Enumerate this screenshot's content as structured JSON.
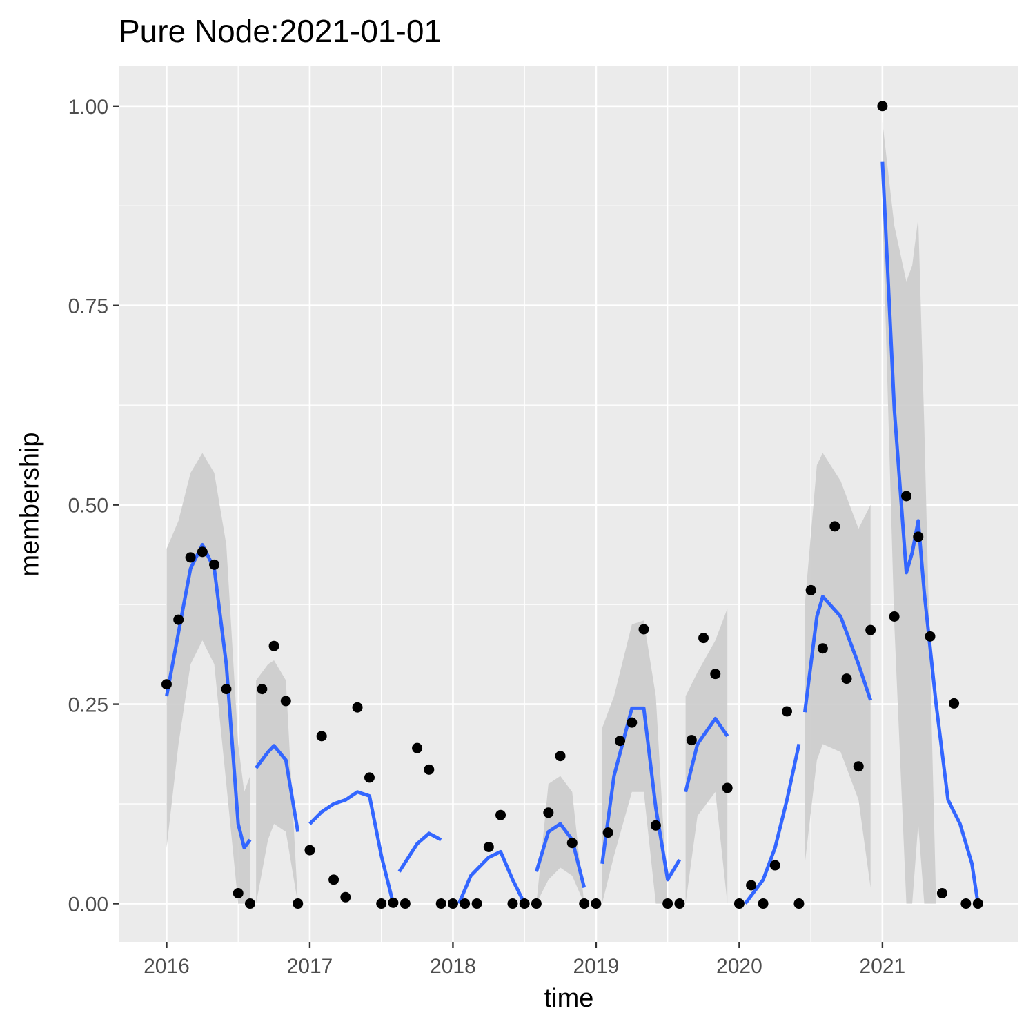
{
  "chart_data": {
    "type": "scatter",
    "title": "Pure Node:2021-01-01",
    "xlabel": "time",
    "ylabel": "membership",
    "x_ticks": [
      "2016",
      "2017",
      "2018",
      "2019",
      "2020",
      "2021"
    ],
    "y_ticks": [
      "0.00",
      "0.25",
      "0.50",
      "0.75",
      "1.00"
    ],
    "xlim": [
      2015.67,
      2021.95
    ],
    "ylim": [
      -0.048,
      1.05
    ],
    "grid": true,
    "colors": {
      "panel": "#ebebeb",
      "grid": "#ffffff",
      "points": "#000000",
      "smooth_line": "#3366ff",
      "confidence_band": "#cccccc"
    },
    "points": [
      [
        2016.0,
        0.275
      ],
      [
        2016.083,
        0.356
      ],
      [
        2016.167,
        0.434
      ],
      [
        2016.25,
        0.441
      ],
      [
        2016.333,
        0.425
      ],
      [
        2016.417,
        0.269
      ],
      [
        2016.5,
        0.013
      ],
      [
        2016.583,
        0.0
      ],
      [
        2016.667,
        0.269
      ],
      [
        2016.75,
        0.323
      ],
      [
        2016.833,
        0.254
      ],
      [
        2016.917,
        0.0
      ],
      [
        2017.0,
        0.067
      ],
      [
        2017.083,
        0.21
      ],
      [
        2017.167,
        0.03
      ],
      [
        2017.25,
        0.008
      ],
      [
        2017.333,
        0.246
      ],
      [
        2017.417,
        0.158
      ],
      [
        2017.5,
        0.0
      ],
      [
        2017.583,
        0.001
      ],
      [
        2017.667,
        0.0
      ],
      [
        2017.75,
        0.195
      ],
      [
        2017.833,
        0.168
      ],
      [
        2017.917,
        0.0
      ],
      [
        2018.0,
        0.0
      ],
      [
        2018.083,
        0.0
      ],
      [
        2018.167,
        0.0
      ],
      [
        2018.25,
        0.071
      ],
      [
        2018.333,
        0.111
      ],
      [
        2018.417,
        0.0
      ],
      [
        2018.5,
        0.0
      ],
      [
        2018.583,
        0.0
      ],
      [
        2018.667,
        0.114
      ],
      [
        2018.75,
        0.185
      ],
      [
        2018.833,
        0.076
      ],
      [
        2018.917,
        0.0
      ],
      [
        2019.0,
        0.0
      ],
      [
        2019.083,
        0.089
      ],
      [
        2019.167,
        0.204
      ],
      [
        2019.25,
        0.227
      ],
      [
        2019.333,
        0.344
      ],
      [
        2019.417,
        0.098
      ],
      [
        2019.5,
        0.0
      ],
      [
        2019.583,
        0.0
      ],
      [
        2019.667,
        0.205
      ],
      [
        2019.75,
        0.333
      ],
      [
        2019.833,
        0.288
      ],
      [
        2019.917,
        0.145
      ],
      [
        2020.0,
        0.0
      ],
      [
        2020.083,
        0.023
      ],
      [
        2020.167,
        0.0
      ],
      [
        2020.25,
        0.048
      ],
      [
        2020.333,
        0.241
      ],
      [
        2020.417,
        0.0
      ],
      [
        2020.5,
        0.393
      ],
      [
        2020.583,
        0.32
      ],
      [
        2020.667,
        0.473
      ],
      [
        2020.75,
        0.282
      ],
      [
        2020.833,
        0.172
      ],
      [
        2020.917,
        0.343
      ],
      [
        2021.0,
        1.0
      ],
      [
        2021.083,
        0.36
      ],
      [
        2021.167,
        0.511
      ],
      [
        2021.25,
        0.46
      ],
      [
        2021.333,
        0.335
      ],
      [
        2021.417,
        0.013
      ],
      [
        2021.5,
        0.251
      ],
      [
        2021.583,
        0.0
      ],
      [
        2021.667,
        0.0
      ]
    ],
    "smooth_segments": [
      [
        [
          2016.0,
          0.26,
          0.07,
          0.445
        ],
        [
          2016.083,
          0.34,
          0.2,
          0.48
        ],
        [
          2016.167,
          0.42,
          0.3,
          0.54
        ],
        [
          2016.25,
          0.45,
          0.33,
          0.565
        ],
        [
          2016.333,
          0.42,
          0.3,
          0.54
        ],
        [
          2016.417,
          0.3,
          0.15,
          0.45
        ],
        [
          2016.5,
          0.1,
          0.0,
          0.2
        ],
        [
          2016.542,
          0.07,
          0.0,
          0.14
        ],
        [
          2016.583,
          0.08,
          0.0,
          0.16
        ]
      ],
      [
        [
          2016.625,
          0.17,
          0.0,
          0.28
        ],
        [
          2016.708,
          0.19,
          0.08,
          0.3
        ],
        [
          2016.75,
          0.198,
          0.1,
          0.305
        ],
        [
          2016.833,
          0.18,
          0.09,
          0.28
        ],
        [
          2016.917,
          0.09,
          0.0,
          0.0
        ]
      ],
      [
        [
          2017.0,
          0.1
        ],
        [
          2017.083,
          0.115
        ],
        [
          2017.167,
          0.125
        ],
        [
          2017.25,
          0.13
        ],
        [
          2017.333,
          0.14
        ],
        [
          2017.417,
          0.135
        ],
        [
          2017.5,
          0.06
        ],
        [
          2017.583,
          0.0
        ]
      ],
      [
        [
          2017.625,
          0.04
        ],
        [
          2017.75,
          0.075
        ],
        [
          2017.833,
          0.088
        ],
        [
          2017.917,
          0.08
        ]
      ],
      [
        [
          2018.042,
          0.0
        ],
        [
          2018.125,
          0.035
        ],
        [
          2018.25,
          0.058
        ],
        [
          2018.333,
          0.065
        ],
        [
          2018.417,
          0.03
        ],
        [
          2018.5,
          0.0
        ]
      ],
      [
        [
          2018.583,
          0.04,
          0.0,
          0.0
        ],
        [
          2018.667,
          0.09,
          0.03,
          0.15
        ],
        [
          2018.75,
          0.1,
          0.045,
          0.16
        ],
        [
          2018.833,
          0.08,
          0.035,
          0.14
        ],
        [
          2018.917,
          0.02,
          0.0,
          0.0
        ]
      ],
      [
        [
          2019.042,
          0.05,
          0.0,
          0.22
        ],
        [
          2019.125,
          0.16,
          0.06,
          0.26
        ],
        [
          2019.25,
          0.245,
          0.14,
          0.35
        ],
        [
          2019.333,
          0.245,
          0.14,
          0.355
        ],
        [
          2019.417,
          0.12,
          0.0,
          0.26
        ],
        [
          2019.5,
          0.03,
          0.0,
          0.0
        ],
        [
          2019.583,
          0.055,
          0.0,
          0.0
        ]
      ],
      [
        [
          2019.625,
          0.14,
          0.0,
          0.26
        ],
        [
          2019.708,
          0.2,
          0.11,
          0.29
        ],
        [
          2019.833,
          0.232,
          0.14,
          0.33
        ],
        [
          2019.917,
          0.21,
          0.0,
          0.37
        ]
      ],
      [
        [
          2020.042,
          0.0
        ],
        [
          2020.167,
          0.03
        ],
        [
          2020.25,
          0.07
        ],
        [
          2020.333,
          0.13
        ],
        [
          2020.417,
          0.2
        ]
      ],
      [
        [
          2020.458,
          0.24,
          0.05,
          0.375
        ],
        [
          2020.542,
          0.36,
          0.18,
          0.55
        ],
        [
          2020.583,
          0.385,
          0.2,
          0.565
        ],
        [
          2020.708,
          0.36,
          0.19,
          0.53
        ],
        [
          2020.833,
          0.3,
          0.13,
          0.47
        ],
        [
          2020.917,
          0.255,
          0.02,
          0.5
        ]
      ],
      [
        [
          2021.0,
          0.93,
          0.87,
          0.98
        ],
        [
          2021.083,
          0.62,
          0.35,
          0.85
        ],
        [
          2021.167,
          0.415,
          0.0,
          0.78
        ],
        [
          2021.208,
          0.44,
          0.0,
          0.8
        ],
        [
          2021.25,
          0.48,
          0.1,
          0.86
        ],
        [
          2021.292,
          0.39,
          0.0,
          0.6
        ],
        [
          2021.375,
          0.25,
          0.0,
          0.0
        ],
        [
          2021.458,
          0.13,
          0.0,
          0.0
        ],
        [
          2021.542,
          0.1,
          0.0,
          0.0
        ],
        [
          2021.625,
          0.05,
          0.0,
          0.0
        ],
        [
          2021.667,
          0.0,
          0.0,
          0.0
        ]
      ]
    ]
  }
}
